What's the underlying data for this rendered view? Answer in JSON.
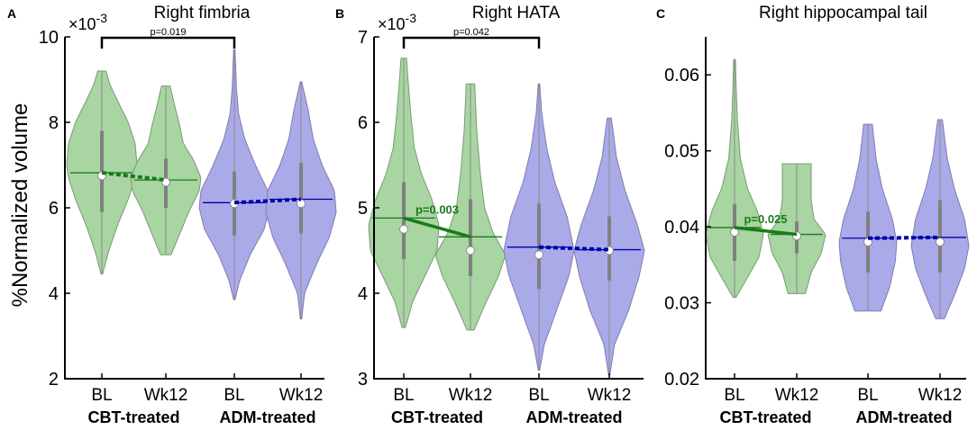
{
  "figure": {
    "ylabel": "%Normalized volume",
    "colors": {
      "cbt_fill": "#a8d5a2",
      "cbt_edge": "#7a9a76",
      "adm_fill": "#aaaae8",
      "adm_edge": "#7d7db0",
      "cbt_line": "#1a7a1a",
      "adm_line": "#0000b0",
      "box": "#808080"
    }
  },
  "chart_data": [
    {
      "type": "violin",
      "panel": "A",
      "title": "Right fimbria",
      "scale_label": "×10",
      "scale_exp": "-3",
      "ylim": [
        2,
        10
      ],
      "yticks": [
        2,
        4,
        6,
        8,
        10
      ],
      "ytick_labels": [
        "2",
        "4",
        "6",
        "8",
        "10"
      ],
      "categories": [
        "BL",
        "Wk12",
        "BL",
        "Wk12"
      ],
      "groups": [
        {
          "name": "CBT-treated",
          "color": "cbt"
        },
        {
          "name": "ADM-treated",
          "color": "adm"
        }
      ],
      "series": [
        {
          "label": "BL",
          "group": 0,
          "min": 4.45,
          "max": 9.2,
          "q1": 5.9,
          "q3": 7.8,
          "median": 6.75,
          "mean": 6.82,
          "profile": [
            [
              4.45,
              0.02
            ],
            [
              5.0,
              0.2
            ],
            [
              5.6,
              0.45
            ],
            [
              6.2,
              0.75
            ],
            [
              6.7,
              0.95
            ],
            [
              7.0,
              1.0
            ],
            [
              7.5,
              0.95
            ],
            [
              8.0,
              0.75
            ],
            [
              8.5,
              0.45
            ],
            [
              8.9,
              0.22
            ],
            [
              9.2,
              0.12
            ]
          ]
        },
        {
          "label": "Wk12",
          "group": 0,
          "min": 4.9,
          "max": 8.85,
          "q1": 6.0,
          "q3": 7.15,
          "median": 6.6,
          "mean": 6.65,
          "profile": [
            [
              4.9,
              0.15
            ],
            [
              5.3,
              0.35
            ],
            [
              5.9,
              0.65
            ],
            [
              6.4,
              0.95
            ],
            [
              6.7,
              1.0
            ],
            [
              7.1,
              0.8
            ],
            [
              7.5,
              0.5
            ],
            [
              7.9,
              0.4
            ],
            [
              8.4,
              0.25
            ],
            [
              8.85,
              0.12
            ]
          ]
        },
        {
          "label": "BL",
          "group": 1,
          "min": 3.85,
          "max": 9.7,
          "q1": 5.35,
          "q3": 6.85,
          "median": 6.1,
          "mean": 6.12,
          "profile": [
            [
              3.85,
              0.02
            ],
            [
              4.3,
              0.15
            ],
            [
              4.9,
              0.45
            ],
            [
              5.5,
              0.85
            ],
            [
              6.0,
              1.0
            ],
            [
              6.4,
              0.95
            ],
            [
              7.0,
              0.6
            ],
            [
              7.6,
              0.3
            ],
            [
              8.2,
              0.12
            ],
            [
              8.8,
              0.06
            ],
            [
              9.7,
              0.02
            ]
          ]
        },
        {
          "label": "Wk12",
          "group": 1,
          "min": 3.4,
          "max": 8.95,
          "q1": 5.4,
          "q3": 7.05,
          "median": 6.1,
          "mean": 6.2,
          "profile": [
            [
              3.4,
              0.02
            ],
            [
              4.0,
              0.1
            ],
            [
              4.7,
              0.45
            ],
            [
              5.3,
              0.8
            ],
            [
              5.9,
              1.0
            ],
            [
              6.4,
              0.95
            ],
            [
              7.0,
              0.6
            ],
            [
              7.6,
              0.35
            ],
            [
              8.3,
              0.2
            ],
            [
              8.95,
              0.02
            ]
          ]
        }
      ],
      "trend": [
        {
          "group": 0,
          "from": 6.82,
          "to": 6.65,
          "style": "dashed",
          "label": ""
        },
        {
          "group": 1,
          "from": 6.12,
          "to": 6.2,
          "style": "dashed",
          "label": ""
        }
      ],
      "bracket": {
        "from_index": 0,
        "to_index": 2,
        "label": "p=0.019"
      }
    },
    {
      "type": "violin",
      "panel": "B",
      "title": "Right HATA",
      "scale_label": "×10",
      "scale_exp": "-3",
      "ylim": [
        3,
        7
      ],
      "yticks": [
        3,
        4,
        5,
        6,
        7
      ],
      "ytick_labels": [
        "3",
        "4",
        "5",
        "6",
        "7"
      ],
      "categories": [
        "BL",
        "Wk12",
        "BL",
        "Wk12"
      ],
      "groups": [
        {
          "name": "CBT-treated",
          "color": "cbt"
        },
        {
          "name": "ADM-treated",
          "color": "adm"
        }
      ],
      "series": [
        {
          "label": "BL",
          "group": 0,
          "min": 3.6,
          "max": 6.75,
          "q1": 4.4,
          "q3": 5.3,
          "median": 4.75,
          "mean": 4.88,
          "profile": [
            [
              3.6,
              0.05
            ],
            [
              3.9,
              0.25
            ],
            [
              4.2,
              0.6
            ],
            [
              4.5,
              0.95
            ],
            [
              4.8,
              1.0
            ],
            [
              5.1,
              0.8
            ],
            [
              5.4,
              0.5
            ],
            [
              5.7,
              0.3
            ],
            [
              6.1,
              0.2
            ],
            [
              6.5,
              0.12
            ],
            [
              6.75,
              0.08
            ]
          ]
        },
        {
          "label": "Wk12",
          "group": 0,
          "min": 3.57,
          "max": 6.45,
          "q1": 4.2,
          "q3": 5.1,
          "median": 4.5,
          "mean": 4.66,
          "profile": [
            [
              3.57,
              0.1
            ],
            [
              3.9,
              0.45
            ],
            [
              4.2,
              0.8
            ],
            [
              4.45,
              1.0
            ],
            [
              4.7,
              0.65
            ],
            [
              5.0,
              0.4
            ],
            [
              5.4,
              0.28
            ],
            [
              5.9,
              0.18
            ],
            [
              6.45,
              0.12
            ]
          ]
        },
        {
          "label": "BL",
          "group": 1,
          "min": 3.1,
          "max": 6.45,
          "q1": 4.05,
          "q3": 5.05,
          "median": 4.45,
          "mean": 4.54,
          "profile": [
            [
              3.1,
              0.02
            ],
            [
              3.4,
              0.15
            ],
            [
              3.8,
              0.5
            ],
            [
              4.2,
              0.85
            ],
            [
              4.5,
              1.0
            ],
            [
              4.9,
              0.8
            ],
            [
              5.3,
              0.45
            ],
            [
              5.7,
              0.22
            ],
            [
              6.1,
              0.08
            ],
            [
              6.45,
              0.02
            ]
          ]
        },
        {
          "label": "Wk12",
          "group": 1,
          "min": 3.05,
          "max": 6.05,
          "q1": 4.15,
          "q3": 4.9,
          "median": 4.5,
          "mean": 4.51,
          "profile": [
            [
              3.05,
              0.02
            ],
            [
              3.4,
              0.15
            ],
            [
              3.8,
              0.55
            ],
            [
              4.2,
              0.85
            ],
            [
              4.5,
              1.0
            ],
            [
              4.8,
              0.8
            ],
            [
              5.2,
              0.45
            ],
            [
              5.6,
              0.2
            ],
            [
              6.05,
              0.06
            ]
          ]
        }
      ],
      "trend": [
        {
          "group": 0,
          "from": 4.88,
          "to": 4.66,
          "style": "solid",
          "label": "p=0.003"
        },
        {
          "group": 1,
          "from": 4.54,
          "to": 4.51,
          "style": "dashed",
          "label": ""
        }
      ],
      "bracket": {
        "from_index": 0,
        "to_index": 2,
        "label": "p=0.042"
      }
    },
    {
      "type": "violin",
      "panel": "C",
      "title": "Right hippocampal tail",
      "scale_label": "",
      "scale_exp": "",
      "ylim": [
        0.02,
        0.065
      ],
      "yticks": [
        0.02,
        0.03,
        0.04,
        0.05,
        0.06
      ],
      "ytick_labels": [
        "0.02",
        "0.03",
        "0.04",
        "0.05",
        "0.06"
      ],
      "categories": [
        "BL",
        "Wk12",
        "BL",
        "Wk12"
      ],
      "groups": [
        {
          "name": "CBT-treated",
          "color": "cbt"
        },
        {
          "name": "ADM-treated",
          "color": "adm"
        }
      ],
      "series": [
        {
          "label": "BL",
          "group": 0,
          "min": 0.0307,
          "max": 0.062,
          "q1": 0.0355,
          "q3": 0.043,
          "median": 0.0393,
          "mean": 0.0399,
          "profile": [
            [
              0.0307,
              0.05
            ],
            [
              0.033,
              0.4
            ],
            [
              0.036,
              0.85
            ],
            [
              0.039,
              1.0
            ],
            [
              0.042,
              0.8
            ],
            [
              0.045,
              0.45
            ],
            [
              0.049,
              0.2
            ],
            [
              0.054,
              0.1
            ],
            [
              0.058,
              0.06
            ],
            [
              0.062,
              0.03
            ]
          ]
        },
        {
          "label": "Wk12",
          "group": 0,
          "min": 0.0312,
          "max": 0.0483,
          "q1": 0.0365,
          "q3": 0.0407,
          "median": 0.0388,
          "mean": 0.039,
          "profile": [
            [
              0.0312,
              0.3
            ],
            [
              0.034,
              0.5
            ],
            [
              0.0365,
              0.85
            ],
            [
              0.039,
              1.0
            ],
            [
              0.041,
              0.6
            ],
            [
              0.0435,
              0.5
            ],
            [
              0.046,
              0.5
            ],
            [
              0.0483,
              0.5
            ]
          ]
        },
        {
          "label": "BL",
          "group": 1,
          "min": 0.0289,
          "max": 0.0535,
          "q1": 0.034,
          "q3": 0.042,
          "median": 0.038,
          "mean": 0.0385,
          "profile": [
            [
              0.0289,
              0.45
            ],
            [
              0.032,
              0.75
            ],
            [
              0.0355,
              0.95
            ],
            [
              0.038,
              1.0
            ],
            [
              0.041,
              0.85
            ],
            [
              0.045,
              0.5
            ],
            [
              0.049,
              0.28
            ],
            [
              0.0535,
              0.15
            ]
          ]
        },
        {
          "label": "Wk12",
          "group": 1,
          "min": 0.0279,
          "max": 0.0541,
          "q1": 0.034,
          "q3": 0.0435,
          "median": 0.038,
          "mean": 0.0386,
          "profile": [
            [
              0.0279,
              0.15
            ],
            [
              0.031,
              0.5
            ],
            [
              0.0345,
              0.85
            ],
            [
              0.0375,
              1.0
            ],
            [
              0.041,
              0.85
            ],
            [
              0.045,
              0.5
            ],
            [
              0.049,
              0.25
            ],
            [
              0.0541,
              0.08
            ]
          ]
        }
      ],
      "trend": [
        {
          "group": 0,
          "from": 0.0399,
          "to": 0.039,
          "style": "solid",
          "label": "p=0.025"
        },
        {
          "group": 1,
          "from": 0.0385,
          "to": 0.0386,
          "style": "dashed",
          "label": ""
        }
      ],
      "bracket": null
    }
  ]
}
